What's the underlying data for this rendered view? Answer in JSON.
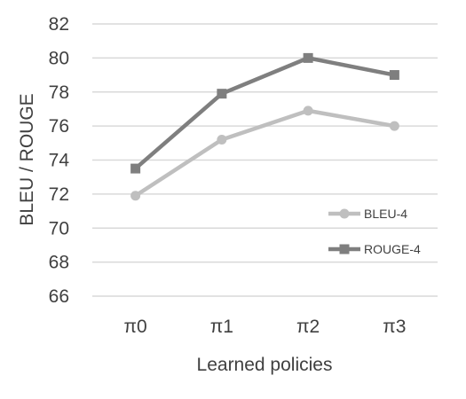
{
  "chart_data": {
    "type": "line",
    "categories": [
      "π0",
      "π1",
      "π2",
      "π3"
    ],
    "series": [
      {
        "name": "BLEU-4",
        "values": [
          71.9,
          75.2,
          76.9,
          76.0
        ],
        "color": "#bfbfbf",
        "marker": "circle"
      },
      {
        "name": "ROUGE-4",
        "values": [
          73.5,
          77.9,
          80.0,
          79.0
        ],
        "color": "#7f7f7f",
        "marker": "square"
      }
    ],
    "xlabel": "Learned policies",
    "ylabel": "BLEU / ROUGE",
    "ylim": [
      66,
      82
    ],
    "yticks": [
      66,
      68,
      70,
      72,
      74,
      76,
      78,
      80,
      82
    ],
    "grid": true,
    "gridColor": "#d9d9d9",
    "legend_position": "bottom-right"
  }
}
